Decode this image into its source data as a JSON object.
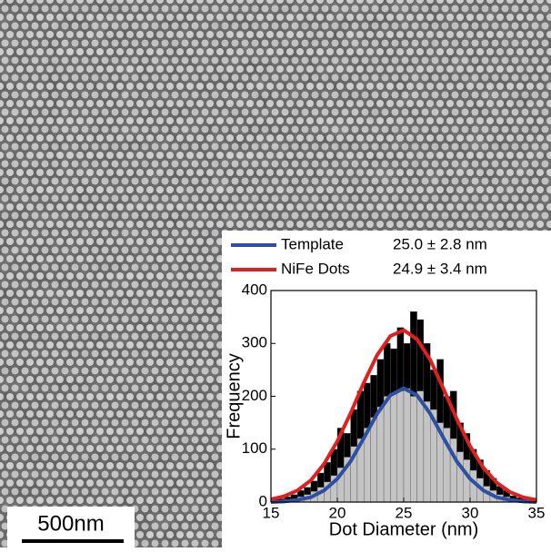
{
  "image": {
    "scale_bar": "500nm"
  },
  "chart_data": {
    "type": "histogram",
    "xlabel": "Dot Diameter (nm)",
    "ylabel": "Frequency",
    "xlim": [
      15,
      35
    ],
    "xticks": [
      15,
      20,
      25,
      30,
      35
    ],
    "ylim": [
      0,
      400
    ],
    "yticks": [
      0,
      100,
      200,
      300,
      400
    ],
    "bins": [
      15,
      15.5,
      16,
      16.5,
      17,
      17.5,
      18,
      18.5,
      19,
      19.5,
      20,
      20.5,
      21,
      21.5,
      22,
      22.5,
      23,
      23.5,
      24,
      24.5,
      25,
      25.5,
      26,
      26.5,
      27,
      27.5,
      28,
      28.5,
      29,
      29.5,
      30,
      30.5,
      31,
      31.5,
      32,
      32.5,
      33,
      33.5,
      34,
      34.5,
      35
    ],
    "histograms": [
      {
        "color": "#000000",
        "values": [
          5,
          6,
          10,
          14,
          22,
          28,
          40,
          55,
          75,
          100,
          140,
          130,
          175,
          210,
          225,
          240,
          270,
          300,
          290,
          330,
          300,
          360,
          345,
          300,
          250,
          270,
          200,
          210,
          150,
          130,
          100,
          80,
          60,
          45,
          30,
          22,
          12,
          8,
          5,
          3
        ]
      },
      {
        "color": "#c4c4c4",
        "values": [
          2,
          3,
          5,
          6,
          10,
          14,
          20,
          28,
          38,
          50,
          65,
          85,
          105,
          120,
          140,
          160,
          180,
          200,
          205,
          210,
          215,
          200,
          210,
          190,
          175,
          150,
          140,
          120,
          95,
          80,
          60,
          45,
          30,
          22,
          14,
          10,
          6,
          4,
          3,
          2
        ]
      }
    ],
    "x": [
      15,
      16,
      17,
      18,
      19,
      20,
      21,
      22,
      23,
      24,
      25,
      26,
      27,
      28,
      29,
      30,
      31,
      32,
      33,
      34,
      35
    ],
    "series": [
      {
        "name": "Template",
        "label": "25.0 ± 2.8 nm",
        "color": "#2f4fa3",
        "values": [
          0,
          1,
          4,
          9,
          22,
          44,
          77,
          121,
          167,
          202,
          215,
          202,
          167,
          121,
          77,
          44,
          22,
          9,
          4,
          1,
          0
        ]
      },
      {
        "name": "NiFe Dots",
        "label": "24.9 ± 3.4 nm",
        "color": "#e02020",
        "values": [
          5,
          11,
          22,
          41,
          72,
          115,
          168,
          226,
          278,
          314,
          325,
          308,
          269,
          214,
          157,
          106,
          65,
          37,
          19,
          9,
          4
        ]
      }
    ]
  }
}
